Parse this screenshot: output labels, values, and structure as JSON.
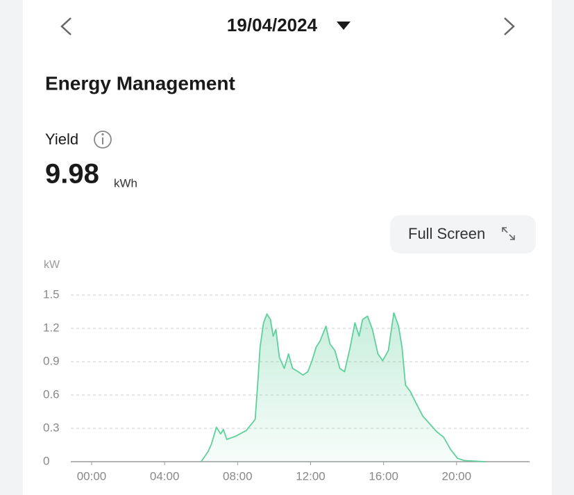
{
  "header": {
    "date": "19/04/2024"
  },
  "card": {
    "title": "Energy Management",
    "metric": {
      "label": "Yield",
      "value": "9.98",
      "unit": "kWh"
    },
    "button": "Full Screen"
  },
  "chart_data": {
    "type": "area",
    "y_label": "kW",
    "color": "#5fcf9b",
    "grid": true,
    "x": [
      6.0,
      6.38,
      6.57,
      6.84,
      7.07,
      7.22,
      7.41,
      7.9,
      8.47,
      8.96,
      9.11,
      9.23,
      9.42,
      9.61,
      9.8,
      9.95,
      10.1,
      10.29,
      10.56,
      10.79,
      11.01,
      11.32,
      11.58,
      11.85,
      12.08,
      12.3,
      12.53,
      12.84,
      13.06,
      13.33,
      13.6,
      13.86,
      14.17,
      14.43,
      14.66,
      14.85,
      15.12,
      15.39,
      15.69,
      15.95,
      16.26,
      16.56,
      16.82,
      17.01,
      17.2,
      17.47,
      17.77,
      18.15,
      18.53,
      18.91,
      19.29,
      19.67,
      20.05,
      20.43,
      21.57
    ],
    "values": [
      0,
      0.09,
      0.16,
      0.31,
      0.25,
      0.29,
      0.2,
      0.23,
      0.28,
      0.38,
      0.72,
      1.03,
      1.25,
      1.33,
      1.28,
      1.13,
      1.19,
      0.94,
      0.84,
      0.97,
      0.84,
      0.81,
      0.78,
      0.81,
      0.91,
      1.03,
      1.09,
      1.22,
      1.06,
      1.0,
      0.84,
      0.81,
      1.03,
      1.25,
      1.13,
      1.28,
      1.31,
      1.19,
      0.97,
      0.91,
      1.0,
      1.34,
      1.22,
      1.03,
      0.69,
      0.63,
      0.53,
      0.41,
      0.34,
      0.27,
      0.22,
      0.11,
      0.03,
      0.01,
      0
    ],
    "xlim": [
      -1.14,
      24
    ],
    "ylim": [
      0,
      1.5
    ],
    "xticks": [
      {
        "value": 0,
        "label": "00:00"
      },
      {
        "value": 4,
        "label": "04:00"
      },
      {
        "value": 8,
        "label": "08:00"
      },
      {
        "value": 12,
        "label": "12:00"
      },
      {
        "value": 16,
        "label": "16:00"
      },
      {
        "value": 20,
        "label": "20:00"
      }
    ],
    "yticks": [
      0,
      0.3,
      0.6,
      0.9,
      1.2,
      1.5
    ]
  }
}
